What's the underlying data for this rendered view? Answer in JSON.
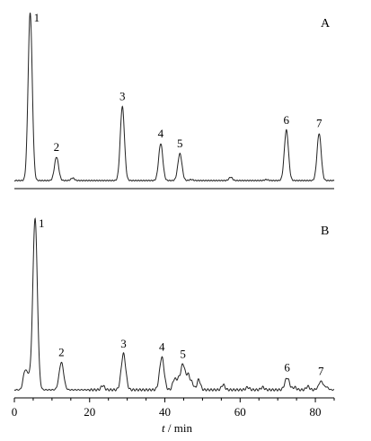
{
  "chart_data": [
    {
      "type": "line",
      "panel_label": "A",
      "x_range": [
        0,
        85
      ],
      "peaks": [
        {
          "label": "1",
          "x": 4.2,
          "height": 1.0
        },
        {
          "label": "2",
          "x": 11.2,
          "height": 0.14
        },
        {
          "label": "3",
          "x": 28.7,
          "height": 0.44
        },
        {
          "label": "4",
          "x": 38.9,
          "height": 0.22
        },
        {
          "label": "5",
          "x": 44.0,
          "height": 0.16
        },
        {
          "label": "6",
          "x": 72.3,
          "height": 0.3
        },
        {
          "label": "7",
          "x": 81.0,
          "height": 0.28
        }
      ]
    },
    {
      "type": "line",
      "panel_label": "B",
      "x_range": [
        0,
        85
      ],
      "peaks": [
        {
          "label": "1",
          "x": 5.5,
          "height": 1.0
        },
        {
          "label": "2",
          "x": 12.5,
          "height": 0.16
        },
        {
          "label": "3",
          "x": 29.0,
          "height": 0.21
        },
        {
          "label": "4",
          "x": 39.2,
          "height": 0.19
        },
        {
          "label": "5",
          "x": 44.8,
          "height": 0.15
        },
        {
          "label": "6",
          "x": 72.5,
          "height": 0.07
        },
        {
          "label": "7",
          "x": 81.5,
          "height": 0.05
        }
      ]
    }
  ],
  "x_axis": {
    "ticks": [
      "0",
      "20",
      "40",
      "60",
      "80"
    ],
    "tick_values": [
      0,
      20,
      40,
      60,
      80
    ],
    "label": "t / min",
    "label_var": "t",
    "label_unit": " / min"
  }
}
